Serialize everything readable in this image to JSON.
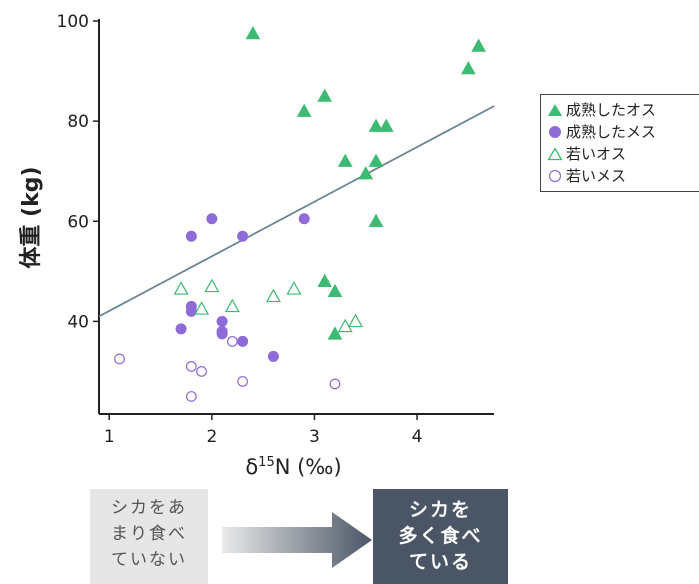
{
  "chart_data": {
    "type": "scatter",
    "xlabel_main": "δ",
    "xlabel_sup": "15",
    "xlabel_rest": "N (‰)",
    "ylabel": "体重 (kg)",
    "xlim": [
      0.9,
      4.75
    ],
    "ylim": [
      21.5,
      100
    ],
    "xticks": [
      1,
      2,
      3,
      4
    ],
    "yticks": [
      40,
      60,
      80,
      100
    ],
    "legend_position": "right",
    "trendline": {
      "x1": 0.9,
      "y1": 41,
      "x2": 4.75,
      "y2": 83,
      "color": "#6b8494"
    },
    "series": [
      {
        "name": "成熟したオス",
        "marker": "triangle",
        "filled": true,
        "color": "#3dbb72",
        "points": [
          [
            2.4,
            97.5
          ],
          [
            4.6,
            95
          ],
          [
            4.5,
            90.5
          ],
          [
            3.1,
            85
          ],
          [
            2.9,
            82
          ],
          [
            3.6,
            79
          ],
          [
            3.7,
            79
          ],
          [
            3.3,
            72
          ],
          [
            3.6,
            72
          ],
          [
            3.5,
            69.5
          ],
          [
            3.6,
            60
          ],
          [
            3.1,
            48
          ],
          [
            3.2,
            46
          ],
          [
            3.2,
            37.5
          ]
        ]
      },
      {
        "name": "成熟したメス",
        "marker": "circle",
        "filled": true,
        "color": "#8e6bd8",
        "points": [
          [
            2.0,
            60.5
          ],
          [
            2.9,
            60.5
          ],
          [
            1.8,
            57
          ],
          [
            2.3,
            57
          ],
          [
            1.8,
            43
          ],
          [
            1.8,
            42
          ],
          [
            2.1,
            40
          ],
          [
            2.1,
            38
          ],
          [
            2.1,
            37.5
          ],
          [
            1.7,
            38.5
          ],
          [
            2.3,
            36
          ],
          [
            2.6,
            33
          ]
        ]
      },
      {
        "name": "若いオス",
        "marker": "triangle",
        "filled": false,
        "color": "#3dbb72",
        "points": [
          [
            1.7,
            46.5
          ],
          [
            2.0,
            47
          ],
          [
            1.9,
            42.5
          ],
          [
            2.2,
            43
          ],
          [
            2.6,
            45
          ],
          [
            2.8,
            46.5
          ],
          [
            3.3,
            39
          ],
          [
            3.4,
            40
          ]
        ]
      },
      {
        "name": "若いメス",
        "marker": "circle",
        "filled": false,
        "color": "#8e6bd8",
        "points": [
          [
            1.1,
            32.5
          ],
          [
            1.8,
            31
          ],
          [
            1.9,
            30
          ],
          [
            2.2,
            36
          ],
          [
            2.3,
            28
          ],
          [
            3.2,
            27.5
          ],
          [
            1.8,
            25
          ]
        ]
      }
    ]
  },
  "bottom": {
    "left_lines": [
      "シカをあ",
      "まり食べ",
      "ていない"
    ],
    "right_lines": [
      "シカを",
      "多く食べ",
      "ている"
    ]
  }
}
